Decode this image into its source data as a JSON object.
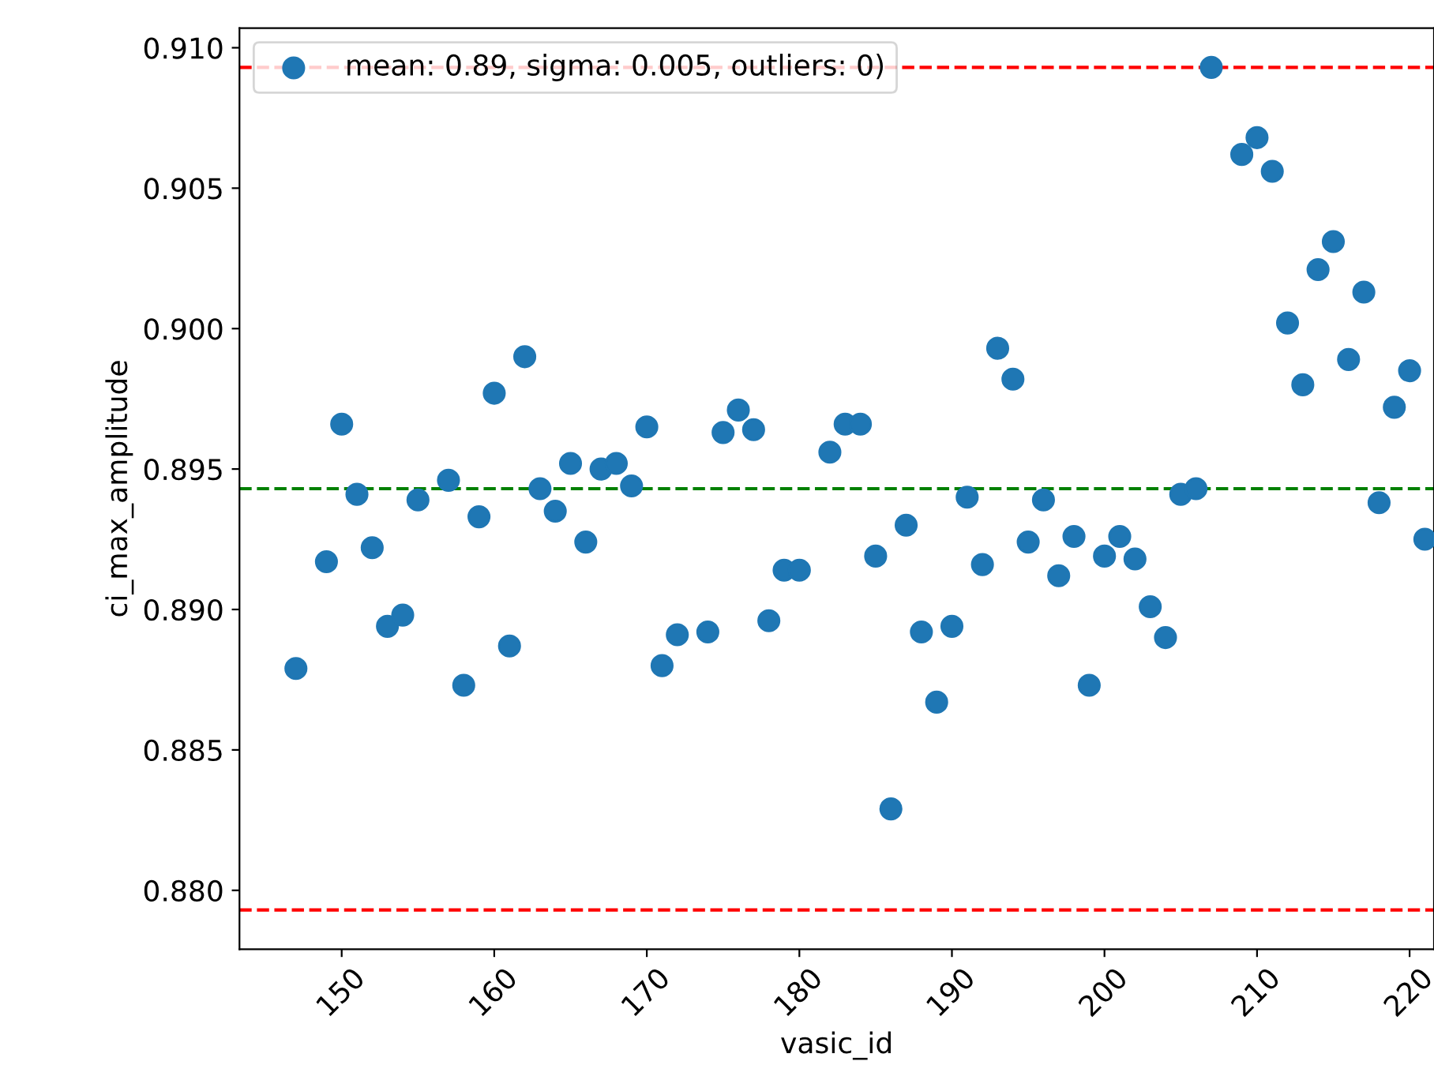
{
  "chart_data": {
    "type": "scatter",
    "xlabel": "vasic_id",
    "ylabel": "ci_max_amplitude",
    "xlim": [
      143.3,
      221.6
    ],
    "xticks": [
      150,
      160,
      170,
      180,
      190,
      200,
      210,
      220
    ],
    "ylim": [
      0.8779,
      0.9107
    ],
    "yticks": [
      {
        "value": 0.88,
        "label": "0.880"
      },
      {
        "value": 0.885,
        "label": "0.885"
      },
      {
        "value": 0.89,
        "label": "0.890"
      },
      {
        "value": 0.895,
        "label": "0.895"
      },
      {
        "value": 0.9,
        "label": "0.900"
      },
      {
        "value": 0.905,
        "label": "0.905"
      },
      {
        "value": 0.91,
        "label": "0.910"
      }
    ],
    "grid": false,
    "legend": "top left",
    "marker": "circle",
    "series": [
      {
        "name": "mean: 0.89, sigma: 0.005, outliers: 0)",
        "color": "#1f77b4",
        "x": [
          147,
          149,
          150,
          151,
          152,
          153,
          154,
          155,
          157,
          158,
          159,
          160,
          161,
          162,
          163,
          164,
          165,
          166,
          167,
          168,
          169,
          170,
          171,
          172,
          174,
          175,
          176,
          177,
          178,
          179,
          180,
          182,
          183,
          184,
          185,
          186,
          187,
          188,
          189,
          190,
          191,
          192,
          193,
          194,
          195,
          196,
          197,
          198,
          199,
          200,
          201,
          202,
          203,
          204,
          205,
          206,
          207,
          209,
          210,
          211,
          212,
          213,
          214,
          215,
          216,
          217,
          218,
          219,
          220,
          221
        ],
        "values": [
          0.8879,
          0.8917,
          0.8966,
          0.8941,
          0.8922,
          0.8894,
          0.8898,
          0.8939,
          0.8946,
          0.8873,
          0.8933,
          0.8977,
          0.8887,
          0.899,
          0.8943,
          0.8935,
          0.8952,
          0.8924,
          0.895,
          0.8952,
          0.8944,
          0.8965,
          0.888,
          0.8891,
          0.8892,
          0.8963,
          0.8971,
          0.8964,
          0.8896,
          0.8914,
          0.8914,
          0.8956,
          0.8966,
          0.8966,
          0.8919,
          0.8829,
          0.893,
          0.8892,
          0.8867,
          0.8894,
          0.894,
          0.8916,
          0.8993,
          0.8982,
          0.8924,
          0.8939,
          0.8912,
          0.8926,
          0.8873,
          0.8919,
          0.8926,
          0.8918,
          0.8901,
          0.889,
          0.8941,
          0.8943,
          0.9093,
          0.9062,
          0.9068,
          0.9056,
          0.9002,
          0.898,
          0.9021,
          0.9031,
          0.8989,
          0.9013,
          0.8938,
          0.8972,
          0.8985,
          0.8925
        ]
      }
    ],
    "ref_lines": [
      {
        "axis": "y",
        "value": 0.9093,
        "color": "#ff0000",
        "line_style": "dashed"
      },
      {
        "axis": "y",
        "value": 0.8943,
        "color": "#008000",
        "line_style": "dashed"
      },
      {
        "axis": "y",
        "value": 0.8793,
        "color": "#ff0000",
        "line_style": "dashed"
      }
    ]
  }
}
